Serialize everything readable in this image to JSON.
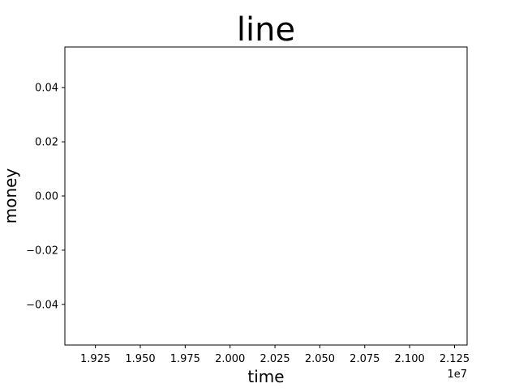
{
  "chart_data": {
    "type": "line",
    "title": "line",
    "xlabel": "time",
    "ylabel": "money",
    "series": [
      {
        "x": [],
        "y": []
      }
    ],
    "xlim": [
      19080000,
      21320000
    ],
    "ylim": [
      -0.055,
      0.055
    ],
    "x_ticks": [
      19250000,
      19500000,
      19750000,
      20000000,
      20250000,
      20500000,
      20750000,
      21000000,
      21250000
    ],
    "x_tick_labels": [
      "1.925",
      "1.950",
      "1.975",
      "2.000",
      "2.025",
      "2.050",
      "2.075",
      "2.100",
      "2.125"
    ],
    "x_offset_label": "1e7",
    "y_ticks": [
      0.04,
      0.02,
      0.0,
      -0.02,
      -0.04
    ],
    "y_tick_labels": [
      "0.04",
      "0.02",
      "0.00",
      "−0.02",
      "−0.04"
    ],
    "grid": false,
    "legend": "none"
  }
}
